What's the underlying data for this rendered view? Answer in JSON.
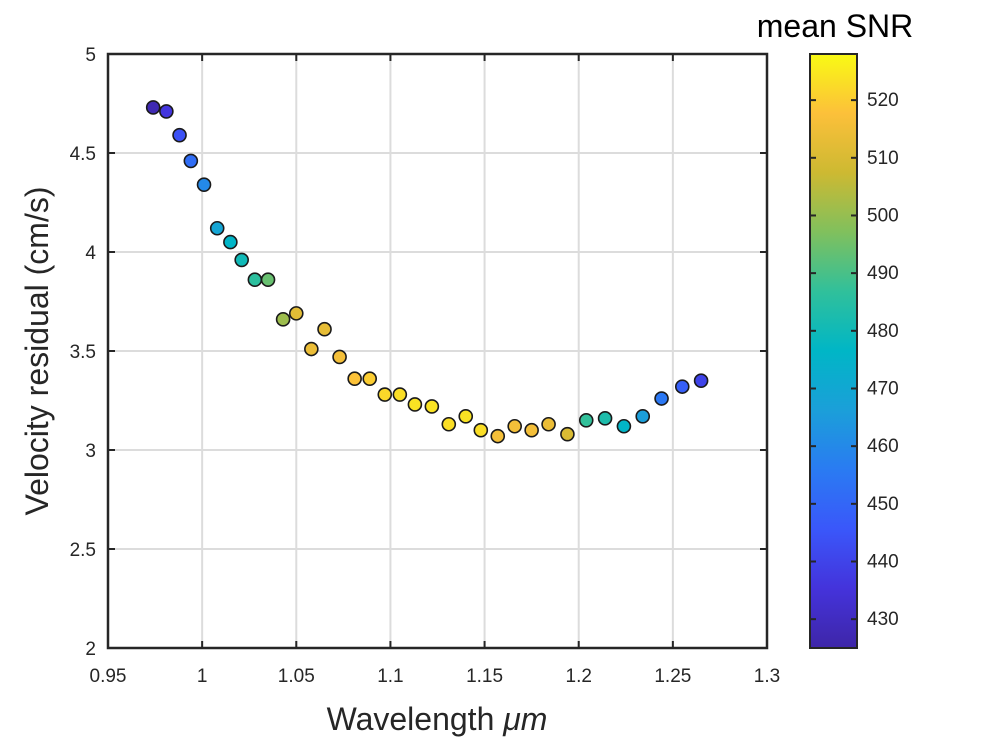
{
  "chart_data": {
    "type": "scatter",
    "xlabel_text": "Wavelength ",
    "xlabel_unit": "μm",
    "ylabel": "Velocity residual (cm/s)",
    "xlim": [
      0.95,
      1.3
    ],
    "ylim": [
      2,
      5
    ],
    "x_ticks": [
      "0.95",
      "1",
      "1.05",
      "1.1",
      "1.15",
      "1.2",
      "1.25",
      "1.3"
    ],
    "y_ticks": [
      "2",
      "2.5",
      "3",
      "3.5",
      "4",
      "4.5",
      "5"
    ],
    "grid": true,
    "colorbar": {
      "title": "mean SNR",
      "range": [
        425,
        528
      ],
      "ticks": [
        "430",
        "440",
        "450",
        "460",
        "470",
        "480",
        "490",
        "500",
        "510",
        "520"
      ],
      "colormap": "parula"
    },
    "points": [
      {
        "x": 0.974,
        "y": 4.73,
        "snr": 427
      },
      {
        "x": 0.981,
        "y": 4.71,
        "snr": 436
      },
      {
        "x": 0.988,
        "y": 4.59,
        "snr": 444
      },
      {
        "x": 0.994,
        "y": 4.46,
        "snr": 452
      },
      {
        "x": 1.001,
        "y": 4.34,
        "snr": 460
      },
      {
        "x": 1.008,
        "y": 4.12,
        "snr": 469
      },
      {
        "x": 1.015,
        "y": 4.05,
        "snr": 476
      },
      {
        "x": 1.021,
        "y": 3.96,
        "snr": 480
      },
      {
        "x": 1.028,
        "y": 3.86,
        "snr": 486
      },
      {
        "x": 1.035,
        "y": 3.86,
        "snr": 494
      },
      {
        "x": 1.043,
        "y": 3.66,
        "snr": 501
      },
      {
        "x": 1.05,
        "y": 3.69,
        "snr": 512
      },
      {
        "x": 1.058,
        "y": 3.51,
        "snr": 514
      },
      {
        "x": 1.065,
        "y": 3.61,
        "snr": 513
      },
      {
        "x": 1.073,
        "y": 3.47,
        "snr": 516
      },
      {
        "x": 1.081,
        "y": 3.36,
        "snr": 518
      },
      {
        "x": 1.089,
        "y": 3.36,
        "snr": 520
      },
      {
        "x": 1.097,
        "y": 3.28,
        "snr": 522
      },
      {
        "x": 1.105,
        "y": 3.28,
        "snr": 523
      },
      {
        "x": 1.113,
        "y": 3.23,
        "snr": 524
      },
      {
        "x": 1.122,
        "y": 3.22,
        "snr": 524
      },
      {
        "x": 1.131,
        "y": 3.13,
        "snr": 523
      },
      {
        "x": 1.14,
        "y": 3.17,
        "snr": 524
      },
      {
        "x": 1.148,
        "y": 3.1,
        "snr": 523
      },
      {
        "x": 1.157,
        "y": 3.07,
        "snr": 516
      },
      {
        "x": 1.166,
        "y": 3.12,
        "snr": 516
      },
      {
        "x": 1.175,
        "y": 3.1,
        "snr": 516
      },
      {
        "x": 1.184,
        "y": 3.13,
        "snr": 514
      },
      {
        "x": 1.194,
        "y": 3.08,
        "snr": 510
      },
      {
        "x": 1.204,
        "y": 3.15,
        "snr": 487
      },
      {
        "x": 1.214,
        "y": 3.16,
        "snr": 483
      },
      {
        "x": 1.224,
        "y": 3.12,
        "snr": 476
      },
      {
        "x": 1.234,
        "y": 3.17,
        "snr": 466
      },
      {
        "x": 1.244,
        "y": 3.26,
        "snr": 455
      },
      {
        "x": 1.255,
        "y": 3.32,
        "snr": 448
      },
      {
        "x": 1.265,
        "y": 3.35,
        "snr": 440
      }
    ]
  }
}
